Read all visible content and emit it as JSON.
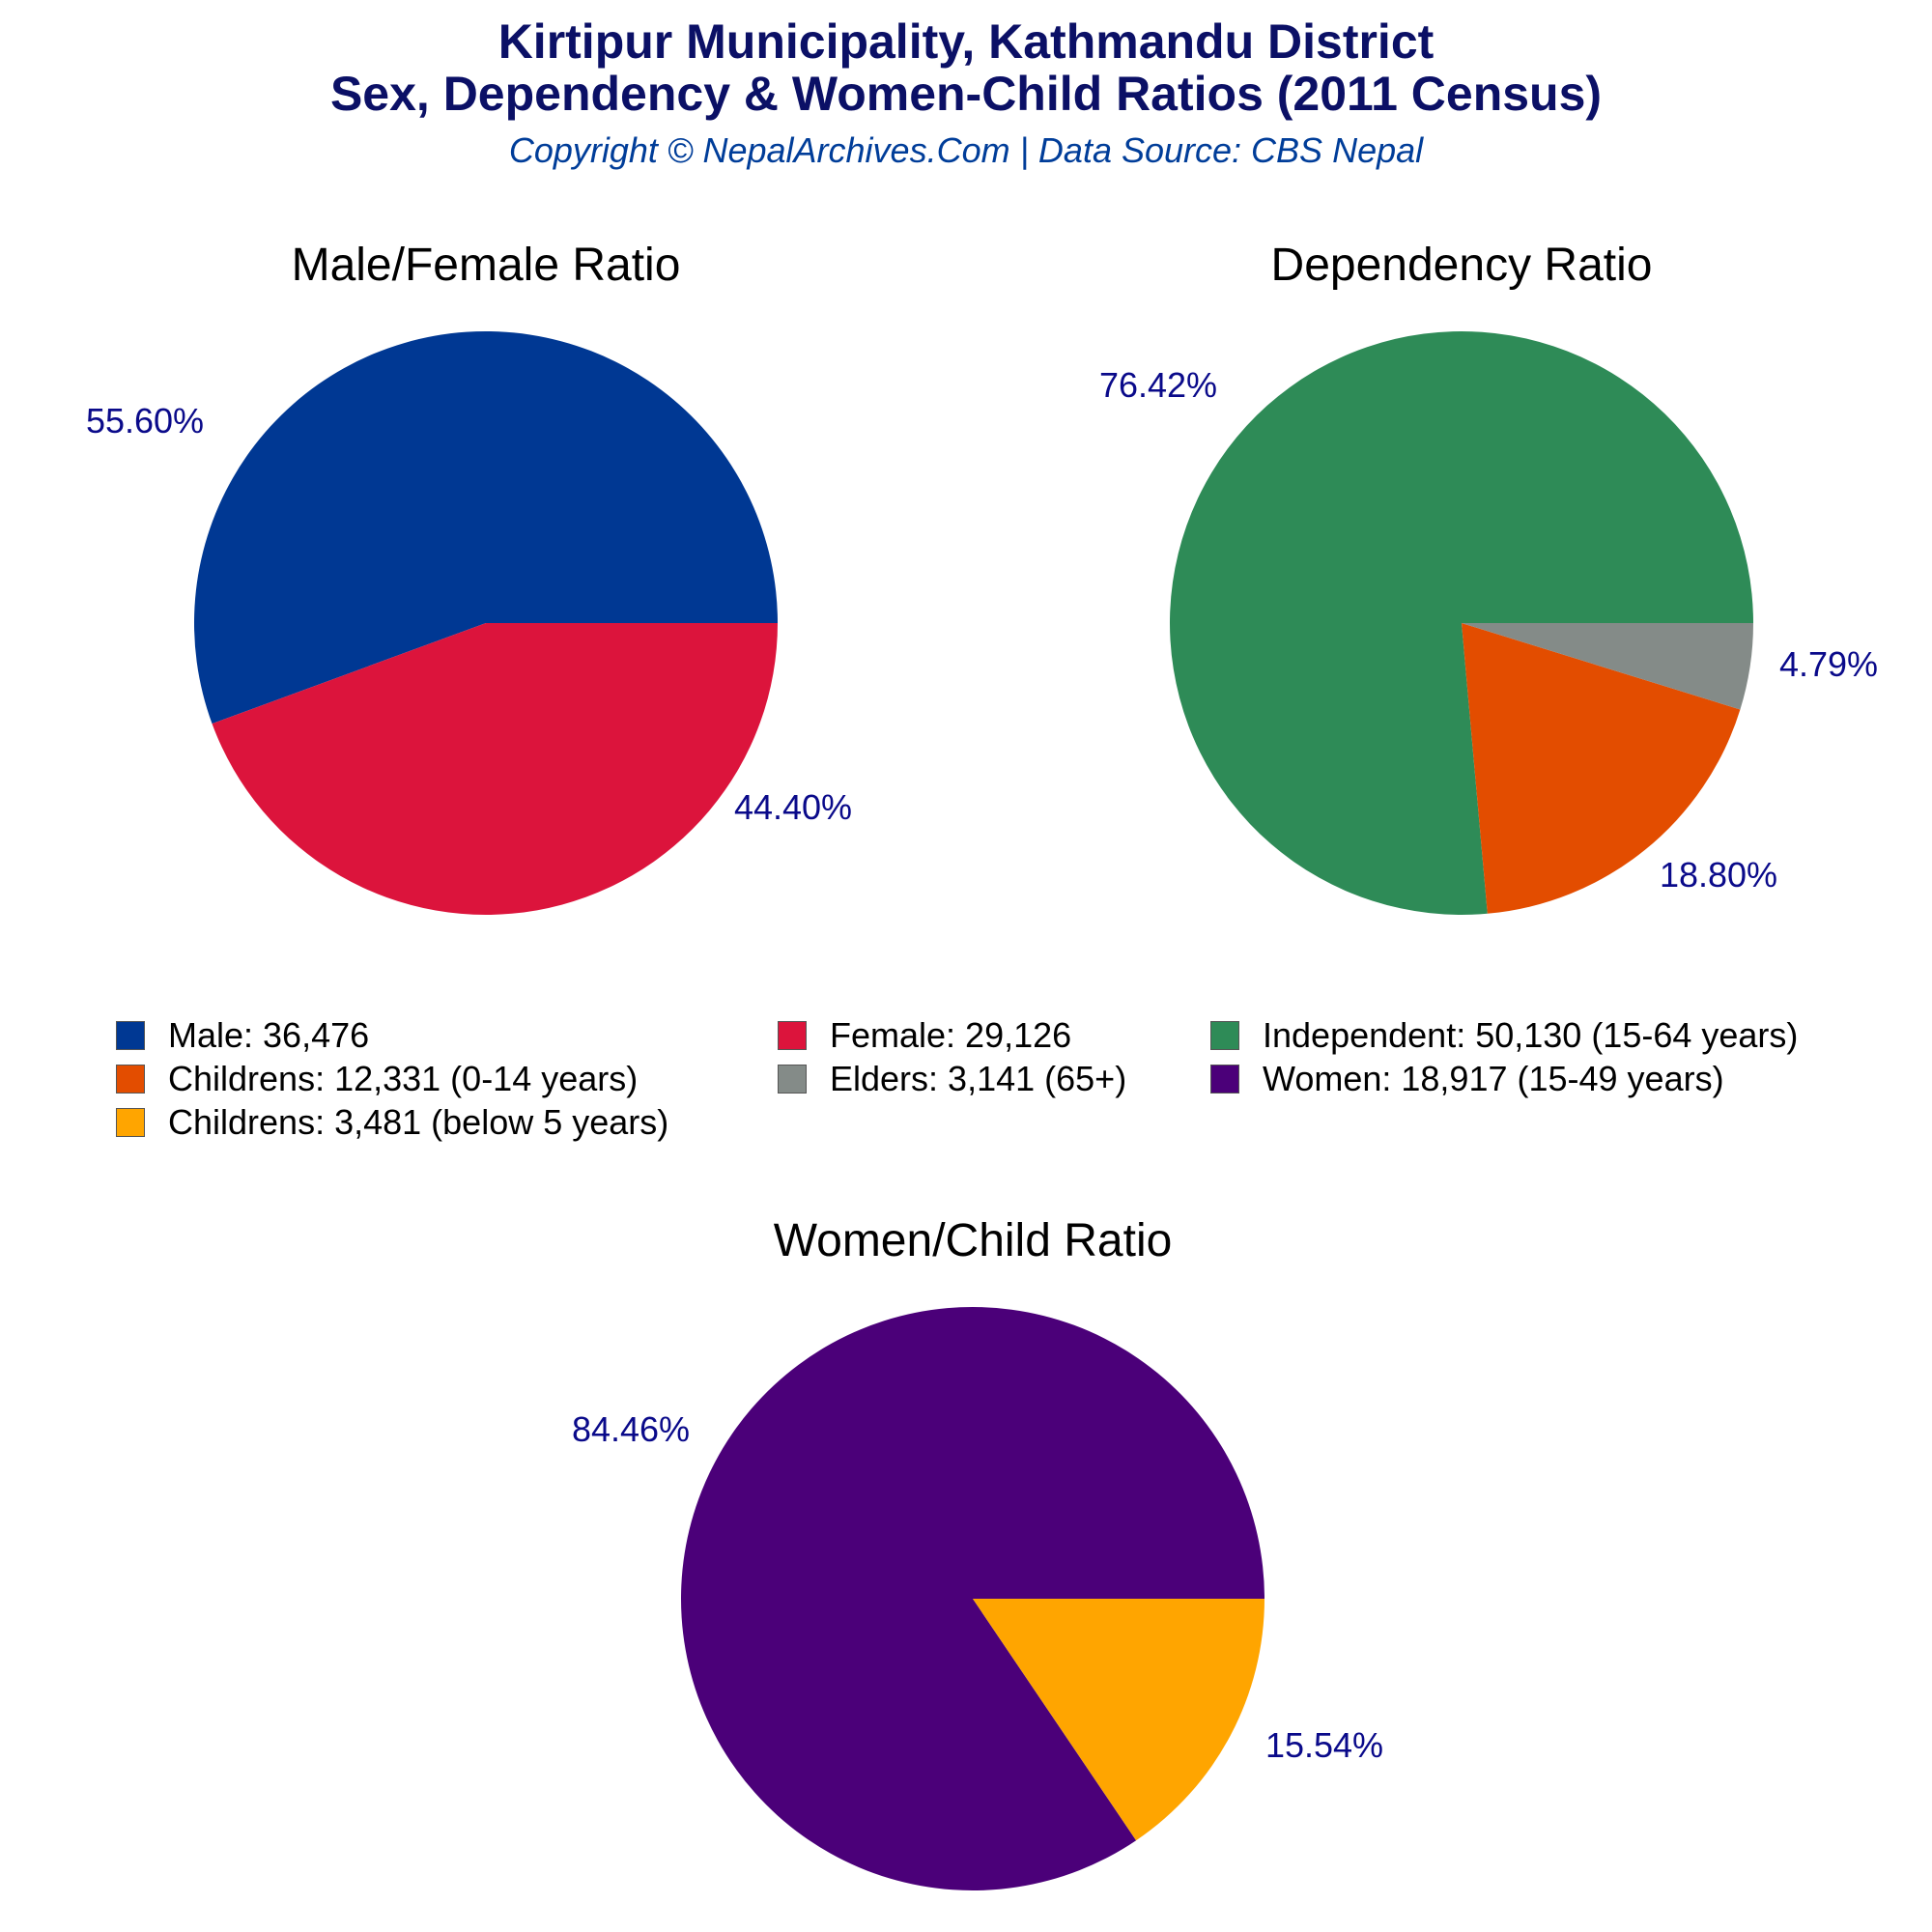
{
  "header": {
    "title_line1": "Kirtipur Municipality, Kathmandu District",
    "title_line2": "Sex, Dependency & Women-Child Ratios (2011 Census)",
    "subtitle": "Copyright © NepalArchives.Com | Data Source: CBS Nepal"
  },
  "colors": {
    "title": "#0b1066",
    "subtitle": "#003d99",
    "percent_label": "#0a0a8a",
    "male": "#003893",
    "female": "#dc143c",
    "independent": "#2e8b57",
    "childrens_0_14": "#e34d00",
    "elders": "#848b88",
    "women": "#4b0079",
    "childrens_below5": "#ffa500"
  },
  "legend": [
    {
      "label": "Male: 36,476",
      "color": "#003893"
    },
    {
      "label": "Female: 29,126",
      "color": "#dc143c"
    },
    {
      "label": "Independent: 50,130 (15-64 years)",
      "color": "#2e8b57"
    },
    {
      "label": "Childrens: 12,331 (0-14 years)",
      "color": "#e34d00"
    },
    {
      "label": "Elders: 3,141 (65+)",
      "color": "#848b88"
    },
    {
      "label": "Women: 18,917 (15-49 years)",
      "color": "#4b0079"
    },
    {
      "label": "Childrens: 3,481 (below 5 years)",
      "color": "#ffa500"
    }
  ],
  "chart_data": [
    {
      "type": "pie",
      "title": "Male/Female Ratio",
      "slices": [
        {
          "name": "Male",
          "value": 36476,
          "percent_label": "55.60%",
          "color": "#003893"
        },
        {
          "name": "Female",
          "value": 29126,
          "percent_label": "44.40%",
          "color": "#dc143c"
        }
      ]
    },
    {
      "type": "pie",
      "title": "Dependency Ratio",
      "slices": [
        {
          "name": "Independent",
          "value": 50130,
          "percent_label": "76.42%",
          "color": "#2e8b57"
        },
        {
          "name": "Childrens (0-14 years)",
          "value": 12331,
          "percent_label": "18.80%",
          "color": "#e34d00"
        },
        {
          "name": "Elders (65+)",
          "value": 3141,
          "percent_label": "4.79%",
          "color": "#848b88"
        }
      ]
    },
    {
      "type": "pie",
      "title": "Women/Child Ratio",
      "slices": [
        {
          "name": "Women (15-49 years)",
          "value": 18917,
          "percent_label": "84.46%",
          "color": "#4b0079"
        },
        {
          "name": "Childrens (below 5 years)",
          "value": 3481,
          "percent_label": "15.54%",
          "color": "#ffa500"
        }
      ]
    }
  ]
}
